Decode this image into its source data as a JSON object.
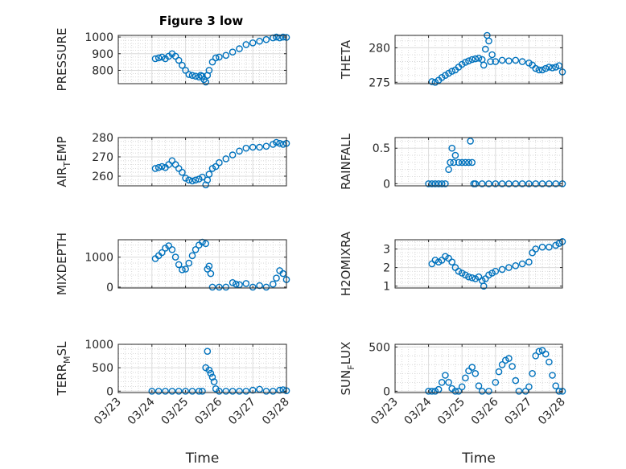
{
  "figure": {
    "title": "Figure 3 low",
    "marker_color": "#0072BD",
    "xtick_labels": [
      "03/23",
      "03/24",
      "03/25",
      "03/26",
      "03/27",
      "03/28"
    ]
  },
  "chart_data": [
    {
      "type": "scatter",
      "ylabel": "PRESSURE",
      "ylabel_sub": null,
      "xlabel": "",
      "ylim": [
        720,
        1010
      ],
      "yticks": [
        800,
        900,
        1000
      ],
      "xlim": [
        0,
        5
      ],
      "grid": true,
      "points": [
        [
          1.1,
          870
        ],
        [
          1.2,
          875
        ],
        [
          1.3,
          880
        ],
        [
          1.4,
          870
        ],
        [
          1.5,
          885
        ],
        [
          1.6,
          900
        ],
        [
          1.7,
          885
        ],
        [
          1.8,
          860
        ],
        [
          1.9,
          830
        ],
        [
          2.0,
          800
        ],
        [
          2.1,
          775
        ],
        [
          2.2,
          770
        ],
        [
          2.3,
          765
        ],
        [
          2.4,
          760
        ],
        [
          2.45,
          770
        ],
        [
          2.5,
          765
        ],
        [
          2.55,
          745
        ],
        [
          2.6,
          730
        ],
        [
          2.65,
          770
        ],
        [
          2.7,
          800
        ],
        [
          2.8,
          850
        ],
        [
          2.9,
          875
        ],
        [
          3.0,
          880
        ],
        [
          3.2,
          890
        ],
        [
          3.4,
          910
        ],
        [
          3.6,
          930
        ],
        [
          3.8,
          955
        ],
        [
          4.0,
          965
        ],
        [
          4.2,
          975
        ],
        [
          4.4,
          985
        ],
        [
          4.6,
          995
        ],
        [
          4.7,
          1000
        ],
        [
          4.8,
          995
        ],
        [
          4.9,
          1000
        ],
        [
          5.0,
          998
        ]
      ]
    },
    {
      "type": "scatter",
      "ylabel": "THETA",
      "ylabel_sub": null,
      "xlabel": "",
      "ylim": [
        274.8,
        281.8
      ],
      "yticks": [
        275,
        280
      ],
      "xlim": [
        0,
        5
      ],
      "grid": true,
      "points": [
        [
          1.1,
          275.1
        ],
        [
          1.2,
          275.0
        ],
        [
          1.3,
          275.3
        ],
        [
          1.4,
          275.7
        ],
        [
          1.5,
          276.0
        ],
        [
          1.6,
          276.3
        ],
        [
          1.7,
          276.6
        ],
        [
          1.8,
          276.8
        ],
        [
          1.9,
          277.2
        ],
        [
          2.0,
          277.6
        ],
        [
          2.1,
          277.9
        ],
        [
          2.2,
          278.1
        ],
        [
          2.3,
          278.3
        ],
        [
          2.4,
          278.4
        ],
        [
          2.5,
          278.5
        ],
        [
          2.6,
          278.3
        ],
        [
          2.65,
          277.5
        ],
        [
          2.7,
          279.8
        ],
        [
          2.75,
          281.8
        ],
        [
          2.8,
          281.0
        ],
        [
          2.85,
          278.0
        ],
        [
          2.9,
          279.0
        ],
        [
          3.0,
          278.0
        ],
        [
          3.2,
          278.2
        ],
        [
          3.4,
          278.1
        ],
        [
          3.6,
          278.2
        ],
        [
          3.8,
          278.0
        ],
        [
          4.0,
          277.8
        ],
        [
          4.1,
          277.5
        ],
        [
          4.2,
          277.0
        ],
        [
          4.3,
          276.8
        ],
        [
          4.4,
          276.8
        ],
        [
          4.5,
          277.0
        ],
        [
          4.6,
          277.2
        ],
        [
          4.7,
          277.1
        ],
        [
          4.8,
          277.2
        ],
        [
          4.9,
          277.4
        ],
        [
          5.0,
          276.5
        ]
      ]
    },
    {
      "type": "scatter",
      "ylabel": "AIR",
      "ylabel_sub": "T",
      "ylabel_tail": "EMP",
      "xlabel": "",
      "ylim": [
        255,
        280
      ],
      "yticks": [
        260,
        270,
        280
      ],
      "xlim": [
        0,
        5
      ],
      "grid": true,
      "points": [
        [
          1.1,
          264
        ],
        [
          1.2,
          264.5
        ],
        [
          1.3,
          265
        ],
        [
          1.4,
          264.5
        ],
        [
          1.5,
          266
        ],
        [
          1.6,
          268
        ],
        [
          1.7,
          266
        ],
        [
          1.8,
          264
        ],
        [
          1.9,
          262
        ],
        [
          2.0,
          259
        ],
        [
          2.1,
          258
        ],
        [
          2.2,
          257.5
        ],
        [
          2.3,
          258
        ],
        [
          2.4,
          258.5
        ],
        [
          2.5,
          259.5
        ],
        [
          2.6,
          255.5
        ],
        [
          2.65,
          258
        ],
        [
          2.7,
          261
        ],
        [
          2.8,
          264
        ],
        [
          2.9,
          265
        ],
        [
          3.0,
          267
        ],
        [
          3.2,
          269
        ],
        [
          3.4,
          271
        ],
        [
          3.6,
          273
        ],
        [
          3.8,
          274.5
        ],
        [
          4.0,
          275
        ],
        [
          4.2,
          275
        ],
        [
          4.4,
          275.5
        ],
        [
          4.6,
          276.5
        ],
        [
          4.7,
          277.5
        ],
        [
          4.8,
          277
        ],
        [
          4.9,
          276.5
        ],
        [
          5.0,
          277
        ]
      ]
    },
    {
      "type": "scatter",
      "ylabel": "RAINFALL",
      "ylabel_sub": null,
      "xlabel": "",
      "ylim": [
        -0.03,
        0.65
      ],
      "yticks": [
        0,
        0.5
      ],
      "xlim": [
        0,
        5
      ],
      "grid": true,
      "points": [
        [
          1.0,
          0
        ],
        [
          1.1,
          0
        ],
        [
          1.2,
          0
        ],
        [
          1.3,
          0
        ],
        [
          1.4,
          0
        ],
        [
          1.5,
          0
        ],
        [
          1.6,
          0.2
        ],
        [
          1.65,
          0.3
        ],
        [
          1.7,
          0.5
        ],
        [
          1.75,
          0.3
        ],
        [
          1.8,
          0.4
        ],
        [
          1.9,
          0.3
        ],
        [
          2.0,
          0.3
        ],
        [
          2.1,
          0.3
        ],
        [
          2.2,
          0.3
        ],
        [
          2.25,
          0.6
        ],
        [
          2.3,
          0.3
        ],
        [
          2.35,
          0
        ],
        [
          2.4,
          0
        ],
        [
          2.6,
          0
        ],
        [
          2.8,
          0
        ],
        [
          3.0,
          0
        ],
        [
          3.2,
          0
        ],
        [
          3.4,
          0
        ],
        [
          3.6,
          0
        ],
        [
          3.8,
          0
        ],
        [
          4.0,
          0
        ],
        [
          4.2,
          0
        ],
        [
          4.4,
          0
        ],
        [
          4.6,
          0
        ],
        [
          4.8,
          0
        ],
        [
          5.0,
          0
        ]
      ]
    },
    {
      "type": "scatter",
      "ylabel": "MIXDEPTH",
      "ylabel_sub": null,
      "xlabel": "",
      "ylim": [
        -30,
        1580
      ],
      "yticks": [
        0,
        1000
      ],
      "xlim": [
        0,
        5
      ],
      "grid": true,
      "points": [
        [
          1.1,
          950
        ],
        [
          1.2,
          1050
        ],
        [
          1.3,
          1150
        ],
        [
          1.4,
          1300
        ],
        [
          1.5,
          1380
        ],
        [
          1.6,
          1250
        ],
        [
          1.7,
          1000
        ],
        [
          1.8,
          750
        ],
        [
          1.9,
          580
        ],
        [
          2.0,
          600
        ],
        [
          2.1,
          800
        ],
        [
          2.2,
          1050
        ],
        [
          2.3,
          1250
        ],
        [
          2.4,
          1400
        ],
        [
          2.5,
          1500
        ],
        [
          2.6,
          1450
        ],
        [
          2.65,
          600
        ],
        [
          2.7,
          700
        ],
        [
          2.75,
          450
        ],
        [
          2.8,
          0
        ],
        [
          3.0,
          0
        ],
        [
          3.2,
          0
        ],
        [
          3.4,
          150
        ],
        [
          3.5,
          100
        ],
        [
          3.6,
          80
        ],
        [
          3.8,
          120
        ],
        [
          4.0,
          0
        ],
        [
          4.2,
          50
        ],
        [
          4.4,
          0
        ],
        [
          4.6,
          100
        ],
        [
          4.7,
          300
        ],
        [
          4.8,
          550
        ],
        [
          4.9,
          450
        ],
        [
          5.0,
          250
        ]
      ]
    },
    {
      "type": "scatter",
      "ylabel": "H2OMIXRA",
      "ylabel_sub": null,
      "xlabel": "",
      "ylim": [
        0.9,
        3.5
      ],
      "yticks": [
        1,
        2,
        3
      ],
      "xlim": [
        0,
        5
      ],
      "grid": true,
      "points": [
        [
          1.1,
          2.2
        ],
        [
          1.2,
          2.4
        ],
        [
          1.3,
          2.3
        ],
        [
          1.4,
          2.4
        ],
        [
          1.5,
          2.6
        ],
        [
          1.6,
          2.5
        ],
        [
          1.7,
          2.3
        ],
        [
          1.8,
          2.0
        ],
        [
          1.9,
          1.8
        ],
        [
          2.0,
          1.7
        ],
        [
          2.1,
          1.6
        ],
        [
          2.2,
          1.5
        ],
        [
          2.3,
          1.45
        ],
        [
          2.4,
          1.4
        ],
        [
          2.5,
          1.5
        ],
        [
          2.6,
          1.3
        ],
        [
          2.65,
          1.0
        ],
        [
          2.7,
          1.4
        ],
        [
          2.8,
          1.6
        ],
        [
          2.9,
          1.7
        ],
        [
          3.0,
          1.8
        ],
        [
          3.2,
          1.9
        ],
        [
          3.4,
          2.0
        ],
        [
          3.6,
          2.1
        ],
        [
          3.8,
          2.2
        ],
        [
          4.0,
          2.3
        ],
        [
          4.1,
          2.8
        ],
        [
          4.2,
          3.0
        ],
        [
          4.4,
          3.1
        ],
        [
          4.6,
          3.1
        ],
        [
          4.8,
          3.2
        ],
        [
          4.9,
          3.3
        ],
        [
          5.0,
          3.4
        ]
      ]
    },
    {
      "type": "scatter",
      "ylabel": "TERR",
      "ylabel_sub": "M",
      "ylabel_tail": "SL",
      "xlabel": "Time",
      "ylim": [
        -30,
        1000
      ],
      "yticks": [
        0,
        500,
        1000
      ],
      "xlim": [
        0,
        5
      ],
      "grid": true,
      "points": [
        [
          1.0,
          0
        ],
        [
          1.2,
          0
        ],
        [
          1.4,
          0
        ],
        [
          1.6,
          0
        ],
        [
          1.8,
          0
        ],
        [
          2.0,
          0
        ],
        [
          2.2,
          0
        ],
        [
          2.4,
          0
        ],
        [
          2.5,
          0
        ],
        [
          2.6,
          500
        ],
        [
          2.65,
          850
        ],
        [
          2.7,
          450
        ],
        [
          2.75,
          380
        ],
        [
          2.8,
          300
        ],
        [
          2.85,
          200
        ],
        [
          2.9,
          50
        ],
        [
          3.0,
          0
        ],
        [
          3.2,
          0
        ],
        [
          3.4,
          0
        ],
        [
          3.6,
          0
        ],
        [
          3.8,
          0
        ],
        [
          4.0,
          20
        ],
        [
          4.2,
          40
        ],
        [
          4.4,
          0
        ],
        [
          4.6,
          0
        ],
        [
          4.8,
          20
        ],
        [
          4.9,
          30
        ],
        [
          5.0,
          10
        ]
      ]
    },
    {
      "type": "scatter",
      "ylabel": "SUN",
      "ylabel_sub": "F",
      "ylabel_tail": "LUX",
      "xlabel": "Time",
      "ylim": [
        -15,
        530
      ],
      "yticks": [
        0,
        500
      ],
      "xlim": [
        0,
        5
      ],
      "grid": true,
      "points": [
        [
          1.0,
          0
        ],
        [
          1.1,
          0
        ],
        [
          1.2,
          0
        ],
        [
          1.3,
          20
        ],
        [
          1.4,
          100
        ],
        [
          1.5,
          180
        ],
        [
          1.6,
          100
        ],
        [
          1.7,
          30
        ],
        [
          1.8,
          0
        ],
        [
          1.9,
          0
        ],
        [
          2.0,
          50
        ],
        [
          2.1,
          150
        ],
        [
          2.2,
          230
        ],
        [
          2.3,
          270
        ],
        [
          2.4,
          200
        ],
        [
          2.5,
          60
        ],
        [
          2.6,
          0
        ],
        [
          2.8,
          0
        ],
        [
          3.0,
          100
        ],
        [
          3.1,
          220
        ],
        [
          3.2,
          300
        ],
        [
          3.3,
          350
        ],
        [
          3.4,
          370
        ],
        [
          3.5,
          280
        ],
        [
          3.6,
          120
        ],
        [
          3.7,
          0
        ],
        [
          3.9,
          0
        ],
        [
          4.0,
          50
        ],
        [
          4.1,
          200
        ],
        [
          4.2,
          400
        ],
        [
          4.3,
          450
        ],
        [
          4.4,
          460
        ],
        [
          4.5,
          420
        ],
        [
          4.6,
          330
        ],
        [
          4.7,
          180
        ],
        [
          4.8,
          60
        ],
        [
          4.9,
          0
        ],
        [
          5.0,
          0
        ]
      ]
    }
  ]
}
